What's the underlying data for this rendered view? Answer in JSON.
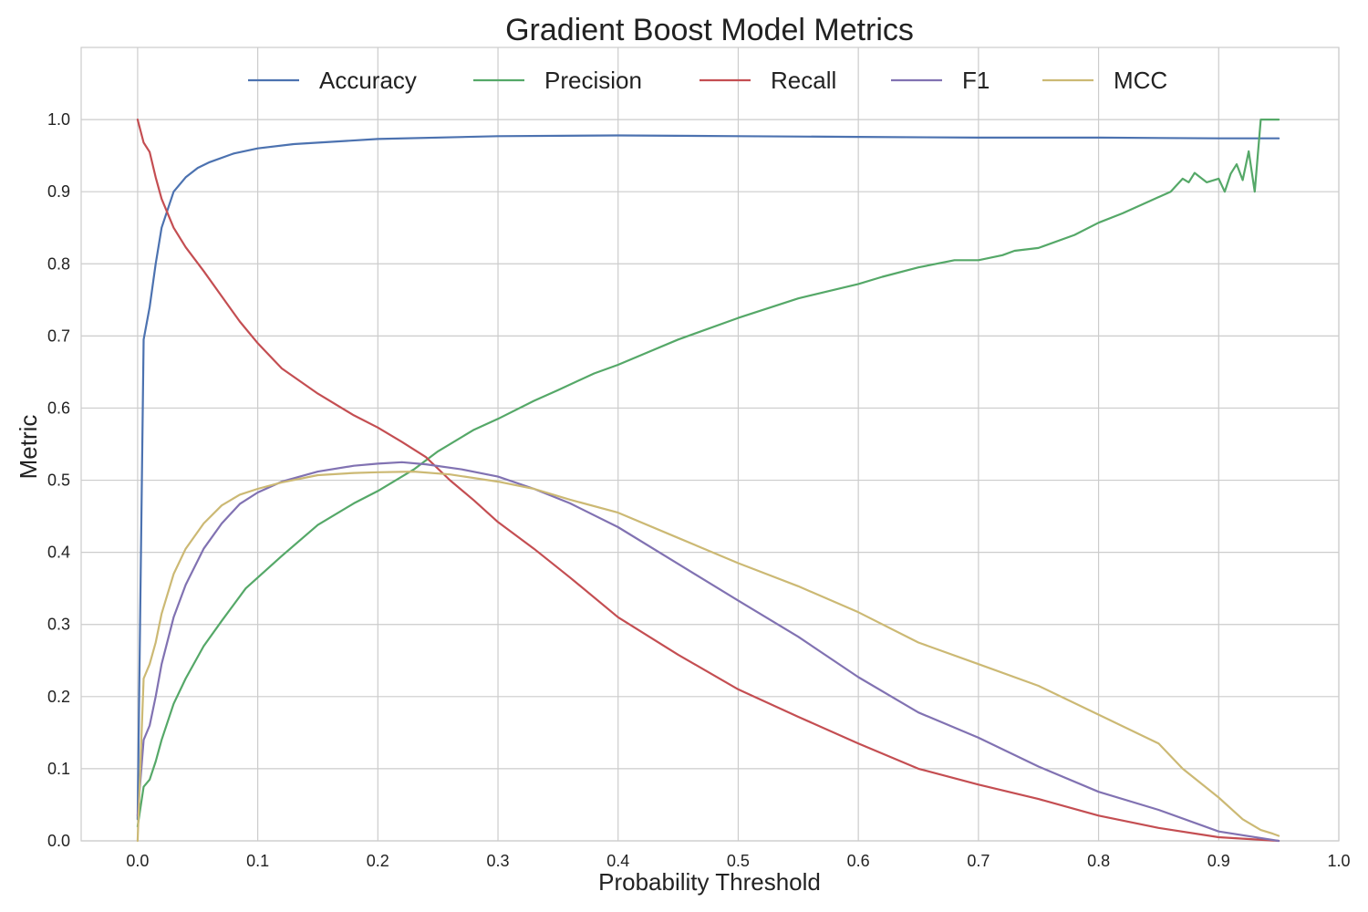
{
  "chart_data": {
    "type": "line",
    "title": "Gradient Boost Model Metrics",
    "xlabel": "Probability Threshold",
    "ylabel": "Metric",
    "xlim": [
      -0.047,
      1.0
    ],
    "ylim": [
      0.0,
      1.1
    ],
    "x_ticks": [
      "0.0",
      "0.1",
      "0.2",
      "0.3",
      "0.4",
      "0.5",
      "0.6",
      "0.7",
      "0.8",
      "0.9",
      "1.0"
    ],
    "y_ticks": [
      "0.0",
      "0.1",
      "0.2",
      "0.3",
      "0.4",
      "0.5",
      "0.6",
      "0.7",
      "0.8",
      "0.9",
      "1.0"
    ],
    "grid": true,
    "legend_position": "top-center",
    "series": [
      {
        "name": "Accuracy",
        "color": "#4c72b0",
        "x": [
          0.0,
          0.005,
          0.01,
          0.015,
          0.02,
          0.03,
          0.04,
          0.05,
          0.06,
          0.08,
          0.1,
          0.13,
          0.2,
          0.3,
          0.4,
          0.5,
          0.6,
          0.7,
          0.8,
          0.9,
          0.95
        ],
        "y": [
          0.03,
          0.695,
          0.74,
          0.8,
          0.85,
          0.9,
          0.92,
          0.933,
          0.941,
          0.953,
          0.96,
          0.966,
          0.973,
          0.977,
          0.978,
          0.977,
          0.976,
          0.975,
          0.975,
          0.974,
          0.974
        ]
      },
      {
        "name": "Precision",
        "color": "#55a868",
        "x": [
          0.0,
          0.005,
          0.01,
          0.015,
          0.02,
          0.03,
          0.04,
          0.055,
          0.07,
          0.09,
          0.1,
          0.12,
          0.15,
          0.18,
          0.2,
          0.23,
          0.25,
          0.28,
          0.3,
          0.33,
          0.35,
          0.38,
          0.4,
          0.45,
          0.5,
          0.55,
          0.6,
          0.62,
          0.65,
          0.68,
          0.7,
          0.72,
          0.73,
          0.75,
          0.78,
          0.8,
          0.82,
          0.84,
          0.86,
          0.87,
          0.875,
          0.88,
          0.89,
          0.9,
          0.905,
          0.91,
          0.915,
          0.92,
          0.925,
          0.93,
          0.935,
          0.94,
          0.945,
          0.95
        ],
        "y": [
          0.02,
          0.075,
          0.085,
          0.11,
          0.14,
          0.19,
          0.225,
          0.27,
          0.305,
          0.35,
          0.365,
          0.395,
          0.438,
          0.468,
          0.485,
          0.515,
          0.54,
          0.57,
          0.585,
          0.61,
          0.625,
          0.648,
          0.66,
          0.695,
          0.725,
          0.752,
          0.772,
          0.782,
          0.795,
          0.805,
          0.805,
          0.812,
          0.818,
          0.822,
          0.84,
          0.857,
          0.87,
          0.885,
          0.9,
          0.918,
          0.913,
          0.926,
          0.913,
          0.918,
          0.9,
          0.925,
          0.938,
          0.916,
          0.956,
          0.9,
          1.0,
          1.0,
          1.0,
          1.0
        ]
      },
      {
        "name": "Recall",
        "color": "#c44e52",
        "x": [
          0.0,
          0.005,
          0.01,
          0.015,
          0.02,
          0.03,
          0.04,
          0.055,
          0.07,
          0.085,
          0.1,
          0.12,
          0.15,
          0.18,
          0.2,
          0.22,
          0.24,
          0.26,
          0.28,
          0.3,
          0.33,
          0.36,
          0.4,
          0.45,
          0.5,
          0.55,
          0.6,
          0.65,
          0.7,
          0.75,
          0.8,
          0.85,
          0.9,
          0.95
        ],
        "y": [
          1.0,
          0.968,
          0.955,
          0.92,
          0.89,
          0.85,
          0.823,
          0.79,
          0.755,
          0.72,
          0.69,
          0.655,
          0.62,
          0.59,
          0.573,
          0.553,
          0.532,
          0.5,
          0.472,
          0.442,
          0.405,
          0.365,
          0.31,
          0.258,
          0.21,
          0.172,
          0.135,
          0.1,
          0.078,
          0.058,
          0.035,
          0.018,
          0.005,
          0.0
        ]
      },
      {
        "name": "F1",
        "color": "#8172b2",
        "x": [
          0.0,
          0.005,
          0.01,
          0.015,
          0.02,
          0.03,
          0.04,
          0.055,
          0.07,
          0.085,
          0.1,
          0.12,
          0.15,
          0.18,
          0.2,
          0.22,
          0.24,
          0.27,
          0.3,
          0.33,
          0.36,
          0.4,
          0.45,
          0.5,
          0.55,
          0.6,
          0.65,
          0.7,
          0.75,
          0.8,
          0.85,
          0.9,
          0.95
        ],
        "y": [
          0.035,
          0.14,
          0.16,
          0.2,
          0.245,
          0.31,
          0.355,
          0.405,
          0.44,
          0.467,
          0.483,
          0.498,
          0.512,
          0.52,
          0.523,
          0.525,
          0.522,
          0.515,
          0.505,
          0.488,
          0.468,
          0.435,
          0.384,
          0.333,
          0.283,
          0.227,
          0.178,
          0.143,
          0.103,
          0.068,
          0.043,
          0.013,
          0.0
        ]
      },
      {
        "name": "MCC",
        "color": "#ccb974",
        "x": [
          0.0,
          0.005,
          0.01,
          0.015,
          0.02,
          0.03,
          0.04,
          0.055,
          0.07,
          0.085,
          0.1,
          0.12,
          0.15,
          0.18,
          0.2,
          0.23,
          0.26,
          0.3,
          0.33,
          0.36,
          0.4,
          0.45,
          0.5,
          0.55,
          0.6,
          0.65,
          0.7,
          0.75,
          0.8,
          0.85,
          0.87,
          0.9,
          0.92,
          0.935,
          0.945,
          0.95
        ],
        "y": [
          0.0,
          0.225,
          0.245,
          0.275,
          0.315,
          0.37,
          0.405,
          0.44,
          0.465,
          0.48,
          0.488,
          0.497,
          0.507,
          0.51,
          0.511,
          0.512,
          0.508,
          0.498,
          0.488,
          0.473,
          0.455,
          0.42,
          0.385,
          0.353,
          0.317,
          0.275,
          0.245,
          0.215,
          0.175,
          0.135,
          0.1,
          0.06,
          0.03,
          0.015,
          0.01,
          0.007
        ]
      }
    ]
  }
}
